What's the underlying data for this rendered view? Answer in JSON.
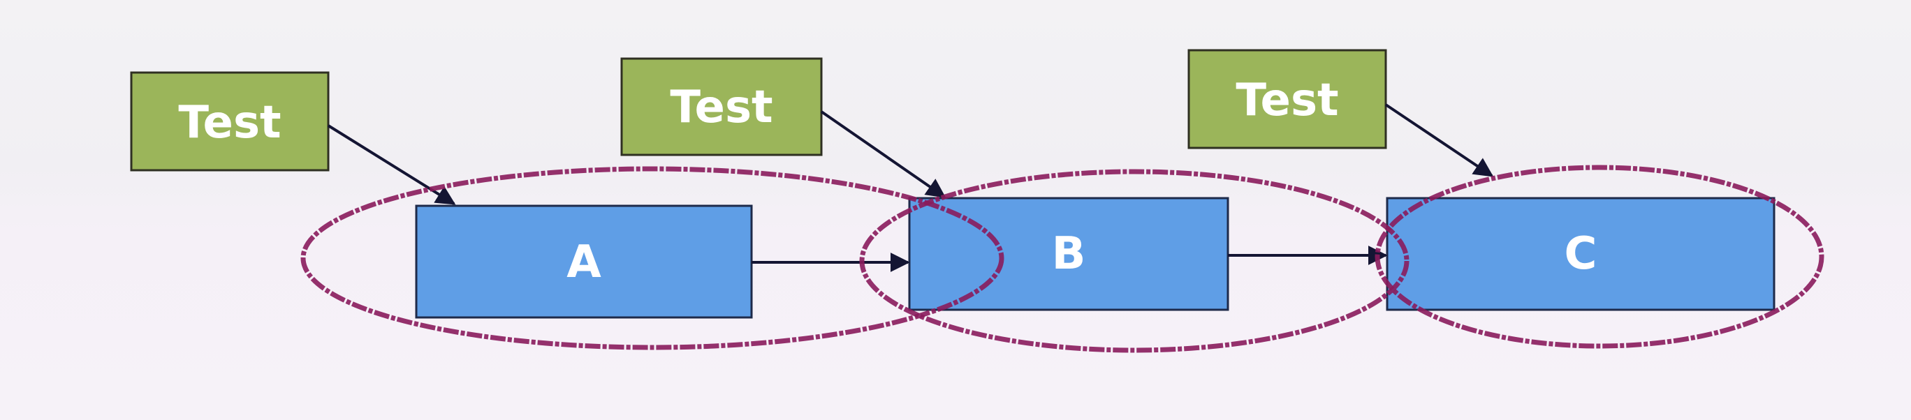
{
  "colors": {
    "test_fill": "#9bb55a",
    "test_border": "#2f3022",
    "block_fill": "#5f9ee6",
    "block_border": "#1e2a4a",
    "edge": "#141533",
    "ellipse": "#8a1b5c"
  },
  "tests": [
    {
      "id": "test-a",
      "label": "Test"
    },
    {
      "id": "test-b",
      "label": "Test"
    },
    {
      "id": "test-c",
      "label": "Test"
    }
  ],
  "blocks": [
    {
      "id": "A",
      "label": "A"
    },
    {
      "id": "B",
      "label": "B"
    },
    {
      "id": "C",
      "label": "C"
    }
  ]
}
